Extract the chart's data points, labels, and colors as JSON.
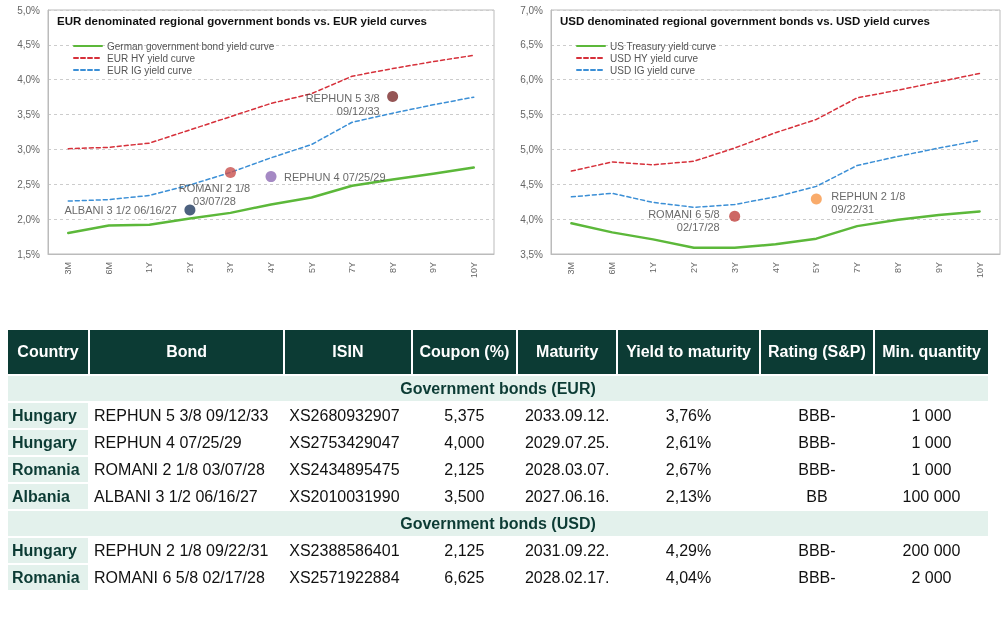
{
  "chart_data": [
    {
      "type": "line",
      "title": "EUR denominated regional government bonds vs. EUR yield curves",
      "categories": [
        "3M",
        "6M",
        "1Y",
        "2Y",
        "3Y",
        "4Y",
        "5Y",
        "7Y",
        "8Y",
        "9Y",
        "10Y"
      ],
      "series": [
        {
          "name": "German government bond yield curve",
          "color": "#5cb83a",
          "line_style": "solid",
          "values": [
            1.8,
            1.91,
            1.92,
            2.01,
            2.09,
            2.21,
            2.31,
            2.48,
            2.57,
            2.65,
            2.74
          ]
        },
        {
          "name": "EUR HY yield curve",
          "color": "#d6303a",
          "line_style": "dashed",
          "values": [
            3.01,
            3.03,
            3.09,
            3.28,
            3.47,
            3.66,
            3.8,
            4.05,
            4.16,
            4.26,
            4.35
          ]
        },
        {
          "name": "EUR IG yield curve",
          "color": "#3b8fd6",
          "line_style": "dashed",
          "values": [
            2.26,
            2.28,
            2.34,
            2.49,
            2.67,
            2.88,
            3.07,
            3.39,
            3.52,
            3.64,
            3.75
          ]
        },
        {
          "type": "scatter",
          "marker": "circle",
          "x": [
            "8Y",
            "4Y",
            "3Y",
            "2Y"
          ],
          "values": [
            3.76,
            2.61,
            2.67,
            2.13
          ],
          "colors": [
            "#7a2a2a",
            "#8e6bb5",
            "#c9504d",
            "#1f3a5f"
          ]
        }
      ],
      "annotations": [
        {
          "text": "REPHUN 5 3/8\n09/12/33",
          "x": "8Y",
          "y": 3.76
        },
        {
          "text": "REPHUN 4 07/25/29",
          "x": "4Y",
          "y": 2.61
        },
        {
          "text": "ROMANI 2 1/8\n03/07/28",
          "x": "3Y",
          "y": 2.67
        },
        {
          "text": "ALBANI 3 1/2 06/16/27",
          "x": "2Y",
          "y": 2.13
        }
      ],
      "ylim": [
        1.5,
        5.0
      ],
      "yticks": [
        {
          "value": 1.5,
          "label": "1,5%"
        },
        {
          "value": 2.0,
          "label": "2,0%"
        },
        {
          "value": 2.5,
          "label": "2,5%"
        },
        {
          "value": 3.0,
          "label": "3,0%"
        },
        {
          "value": 3.5,
          "label": "3,5%"
        },
        {
          "value": 4.0,
          "label": "4,0%"
        },
        {
          "value": 4.5,
          "label": "4,5%"
        },
        {
          "value": 5.0,
          "label": "5,0%"
        }
      ],
      "grid": "y",
      "legend": "top left",
      "marker": "none"
    },
    {
      "type": "line",
      "title": "USD denominated regional government bonds vs. USD yield curves",
      "categories": [
        "3M",
        "6M",
        "1Y",
        "2Y",
        "3Y",
        "4Y",
        "5Y",
        "7Y",
        "8Y",
        "9Y",
        "10Y"
      ],
      "series": [
        {
          "name": "US Treasury yield curve",
          "color": "#5cb83a",
          "line_style": "solid",
          "values": [
            3.94,
            3.81,
            3.71,
            3.59,
            3.59,
            3.64,
            3.72,
            3.9,
            3.99,
            4.06,
            4.11
          ]
        },
        {
          "name": "USD HY yield curve",
          "color": "#d6303a",
          "line_style": "dashed",
          "values": [
            4.69,
            4.82,
            4.78,
            4.83,
            5.02,
            5.24,
            5.43,
            5.74,
            5.85,
            5.97,
            6.09
          ]
        },
        {
          "name": "USD IG yield curve",
          "color": "#3b8fd6",
          "line_style": "dashed",
          "values": [
            4.32,
            4.37,
            4.24,
            4.17,
            4.21,
            4.32,
            4.47,
            4.77,
            4.9,
            5.02,
            5.13
          ]
        },
        {
          "type": "scatter",
          "marker": "circle",
          "x": [
            "5Y",
            "3Y"
          ],
          "values": [
            4.29,
            4.04
          ],
          "colors": [
            "#f79646",
            "#c0413d"
          ]
        }
      ],
      "annotations": [
        {
          "text": "REPHUN 2 1/8\n09/22/31",
          "x": "5Y",
          "y": 4.29
        },
        {
          "text": "ROMANI 6 5/8\n02/17/28",
          "x": "3Y",
          "y": 4.04
        }
      ],
      "ylim": [
        3.5,
        7.0
      ],
      "yticks": [
        {
          "value": 3.5,
          "label": "3,5%"
        },
        {
          "value": 4.0,
          "label": "4,0%"
        },
        {
          "value": 4.5,
          "label": "4,5%"
        },
        {
          "value": 5.0,
          "label": "5,0%"
        },
        {
          "value": 5.5,
          "label": "5,5%"
        },
        {
          "value": 6.0,
          "label": "6,0%"
        },
        {
          "value": 6.5,
          "label": "6,5%"
        },
        {
          "value": 7.0,
          "label": "7,0%"
        }
      ],
      "grid": "y",
      "legend": "top left",
      "marker": "none"
    },
    {
      "type": "other",
      "categories": [
        "Country",
        "Bond",
        "ISIN",
        "Coupon (%)",
        "Maturity",
        "Yield to maturity",
        "Rating (S&P)",
        "Min. quantity"
      ],
      "cell_labels": [
        [
          "Government bonds (EUR)",
          null,
          null,
          null,
          null,
          null,
          null,
          null
        ],
        [
          "Hungary",
          "REPHUN 5 3/8 09/12/33",
          "XS2680932907",
          "5,375",
          "2033.09.12.",
          "3,76%",
          "BBB-",
          "1 000"
        ],
        [
          "Hungary",
          "REPHUN 4 07/25/29",
          "XS2753429047",
          "4,000",
          "2029.07.25.",
          "2,61%",
          "BBB-",
          "1 000"
        ],
        [
          "Romania",
          "ROMANI 2 1/8 03/07/28",
          "XS2434895475",
          "2,125",
          "2028.03.07.",
          "2,67%",
          "BBB-",
          "1 000"
        ],
        [
          "Albania",
          "ALBANI 3 1/2 06/16/27",
          "XS2010031990",
          "3,500",
          "2027.06.16.",
          "2,13%",
          "BB",
          "100 000"
        ],
        [
          "Government bonds (USD)",
          null,
          null,
          null,
          null,
          null,
          null,
          null
        ],
        [
          "Hungary",
          "REPHUN 2 1/8 09/22/31",
          "XS2388586401",
          "2,125",
          "2031.09.22.",
          "4,29%",
          "BBB-",
          "200 000"
        ],
        [
          "Romania",
          "ROMANI 6 5/8 02/17/28",
          "XS2571922884",
          "6,625",
          "2028.02.17.",
          "4,04%",
          "BBB-",
          "2 000"
        ]
      ]
    }
  ]
}
